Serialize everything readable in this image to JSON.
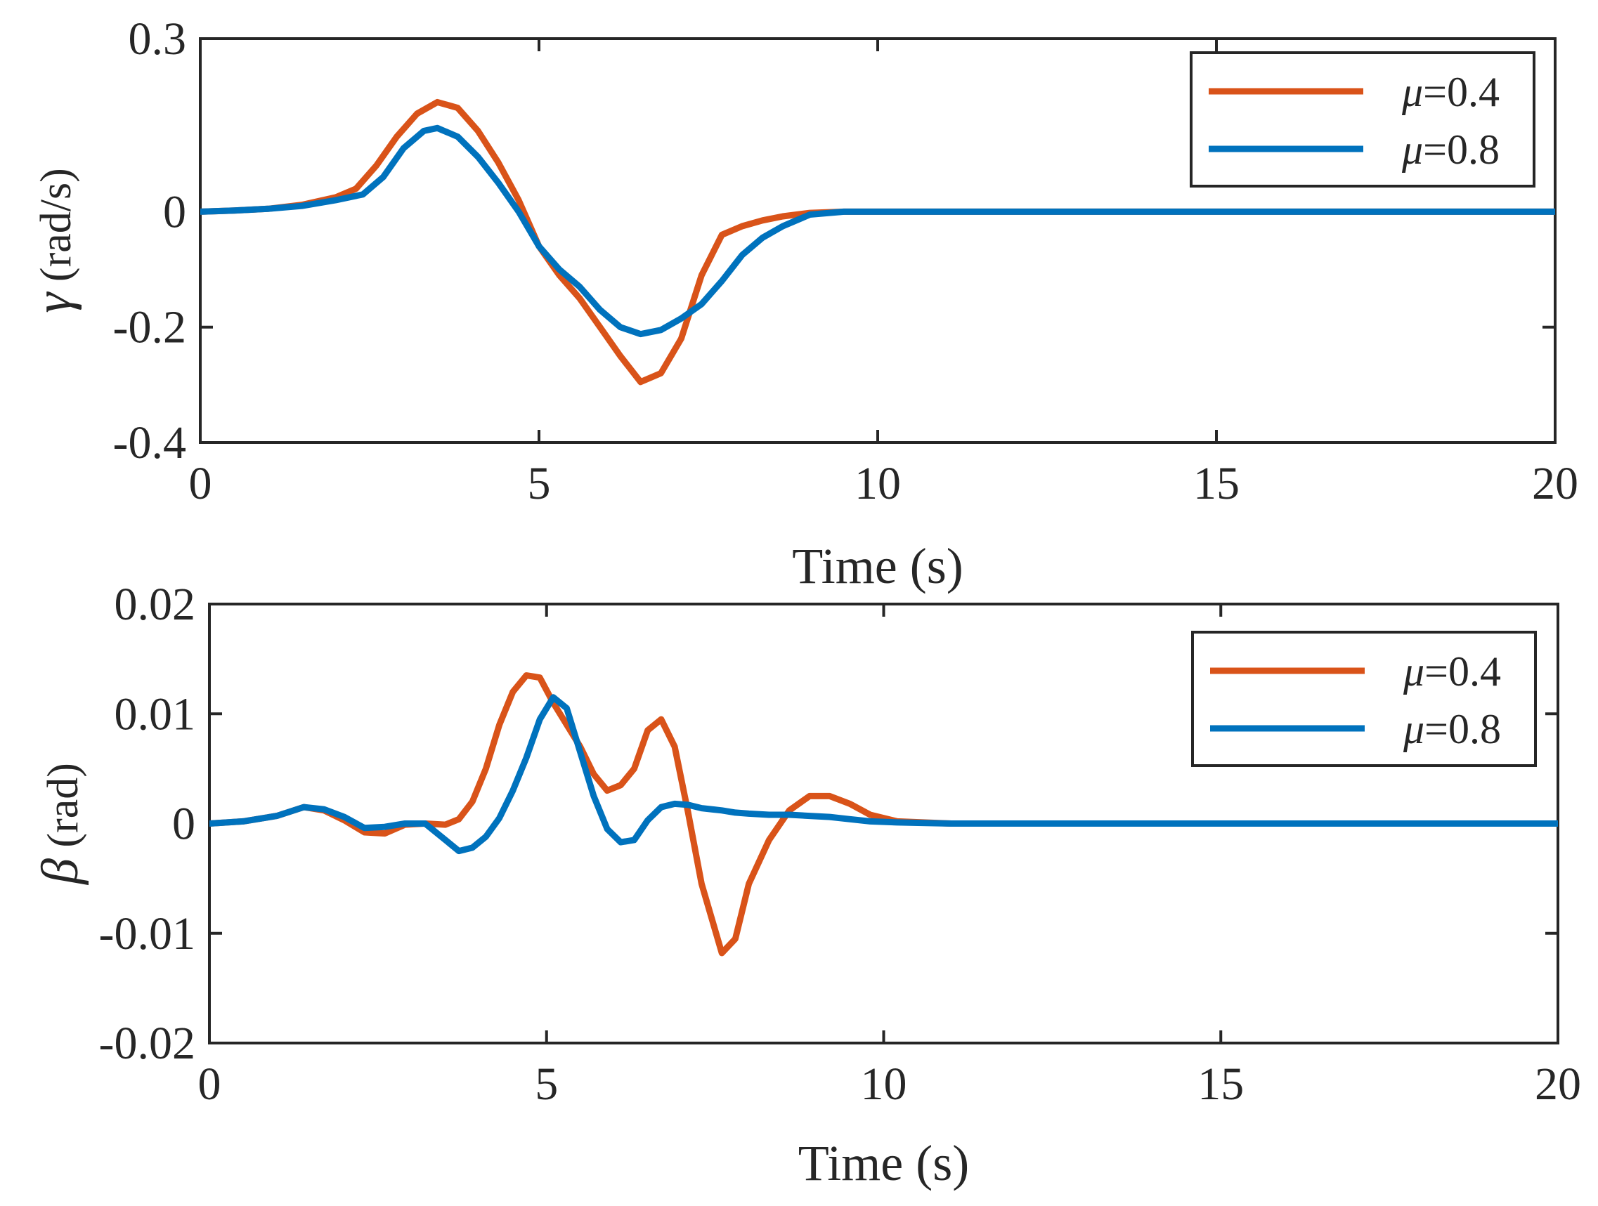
{
  "colors": {
    "mu04": "#D95319",
    "mu08": "#0072BD",
    "axis": "#262626"
  },
  "chart_data": [
    {
      "type": "line",
      "title": "",
      "xlabel": "Time (s)",
      "ylabel_symbol": "γ",
      "ylabel_unit": " (rad/s)",
      "xlim": [
        0,
        20
      ],
      "ylim": [
        -0.4,
        0.3
      ],
      "xticks": [
        0,
        5,
        10,
        15,
        20
      ],
      "xtick_labels": [
        "0",
        "5",
        "10",
        "15",
        "20"
      ],
      "yticks": [
        -0.4,
        -0.2,
        0,
        0.3
      ],
      "ytick_labels": [
        "-0.4",
        "-0.2",
        "0",
        "0.3"
      ],
      "grid": false,
      "legend_position": "top-right",
      "series": [
        {
          "name": "μ=0.4",
          "legend_symbol": "μ",
          "legend_value": "=0.4",
          "color_key": "mu04",
          "x": [
            0,
            0.5,
            1,
            1.5,
            2,
            2.3,
            2.6,
            2.9,
            3.2,
            3.5,
            3.8,
            4.1,
            4.4,
            4.7,
            5,
            5.3,
            5.6,
            5.9,
            6.2,
            6.5,
            6.8,
            7.1,
            7.4,
            7.7,
            8,
            8.3,
            8.6,
            9,
            9.5,
            10,
            12,
            15,
            20
          ],
          "y": [
            0,
            0.002,
            0.005,
            0.012,
            0.025,
            0.04,
            0.08,
            0.13,
            0.17,
            0.19,
            0.18,
            0.14,
            0.085,
            0.02,
            -0.06,
            -0.11,
            -0.15,
            -0.2,
            -0.25,
            -0.295,
            -0.28,
            -0.22,
            -0.11,
            -0.04,
            -0.025,
            -0.015,
            -0.008,
            -0.002,
            0,
            0,
            0,
            0,
            0
          ]
        },
        {
          "name": "μ=0.8",
          "legend_symbol": "μ",
          "legend_value": "=0.8",
          "color_key": "mu08",
          "x": [
            0,
            0.5,
            1,
            1.5,
            2,
            2.4,
            2.7,
            3,
            3.3,
            3.5,
            3.8,
            4.1,
            4.4,
            4.7,
            5,
            5.3,
            5.6,
            5.9,
            6.2,
            6.5,
            6.8,
            7.1,
            7.4,
            7.7,
            8,
            8.3,
            8.6,
            9,
            9.5,
            10,
            12,
            15,
            20
          ],
          "y": [
            0,
            0.002,
            0.005,
            0.01,
            0.02,
            0.03,
            0.06,
            0.11,
            0.14,
            0.145,
            0.13,
            0.095,
            0.05,
            0.0,
            -0.06,
            -0.1,
            -0.13,
            -0.17,
            -0.2,
            -0.212,
            -0.205,
            -0.185,
            -0.16,
            -0.12,
            -0.075,
            -0.045,
            -0.025,
            -0.005,
            0,
            0,
            0,
            0,
            0
          ]
        }
      ]
    },
    {
      "type": "line",
      "title": "",
      "xlabel": "Time (s)",
      "ylabel_symbol": "β",
      "ylabel_unit": " (rad)",
      "xlim": [
        0,
        20
      ],
      "ylim": [
        -0.02,
        0.02
      ],
      "xticks": [
        0,
        5,
        10,
        15,
        20
      ],
      "xtick_labels": [
        "0",
        "5",
        "10",
        "15",
        "20"
      ],
      "yticks": [
        -0.02,
        -0.01,
        0,
        0.01,
        0.02
      ],
      "ytick_labels": [
        "-0.02",
        "-0.01",
        "0",
        "0.01",
        "0.02"
      ],
      "grid": false,
      "legend_position": "top-right",
      "series": [
        {
          "name": "μ=0.4",
          "legend_symbol": "μ",
          "legend_value": "=0.4",
          "color_key": "mu04",
          "x": [
            0,
            0.5,
            1,
            1.4,
            1.7,
            2,
            2.3,
            2.6,
            2.9,
            3.2,
            3.5,
            3.7,
            3.9,
            4.1,
            4.3,
            4.5,
            4.7,
            4.9,
            5.1,
            5.3,
            5.5,
            5.7,
            5.9,
            6.1,
            6.3,
            6.5,
            6.7,
            6.9,
            7.1,
            7.3,
            7.6,
            7.8,
            8,
            8.3,
            8.6,
            8.9,
            9.2,
            9.5,
            9.8,
            10.2,
            11,
            15,
            20
          ],
          "y": [
            0,
            0.0002,
            0.0007,
            0.0015,
            0.0012,
            0.0003,
            -0.0008,
            -0.0009,
            -0.0001,
            0.0,
            -0.0001,
            0.0004,
            0.002,
            0.005,
            0.009,
            0.012,
            0.0135,
            0.0133,
            0.011,
            0.009,
            0.007,
            0.0045,
            0.003,
            0.0035,
            0.005,
            0.0085,
            0.0095,
            0.007,
            0.001,
            -0.0055,
            -0.0118,
            -0.0105,
            -0.0055,
            -0.0015,
            0.0012,
            0.0025,
            0.0025,
            0.0018,
            0.0008,
            0.0002,
            0,
            0,
            0
          ]
        },
        {
          "name": "μ=0.8",
          "legend_symbol": "μ",
          "legend_value": "=0.8",
          "color_key": "mu08",
          "x": [
            0,
            0.5,
            1,
            1.4,
            1.7,
            2,
            2.3,
            2.6,
            2.9,
            3.2,
            3.5,
            3.7,
            3.9,
            4.1,
            4.3,
            4.5,
            4.7,
            4.9,
            5.1,
            5.3,
            5.5,
            5.7,
            5.9,
            6.1,
            6.3,
            6.5,
            6.7,
            6.9,
            7.1,
            7.3,
            7.6,
            7.8,
            8,
            8.3,
            8.6,
            8.9,
            9.2,
            9.5,
            9.8,
            10.2,
            11,
            15,
            20
          ],
          "y": [
            0,
            0.0002,
            0.0007,
            0.0015,
            0.0013,
            0.0006,
            -0.0004,
            -0.0003,
            0.0,
            0.0,
            -0.0015,
            -0.0025,
            -0.0022,
            -0.0012,
            0.0005,
            0.003,
            0.006,
            0.0095,
            0.0115,
            0.0105,
            0.0065,
            0.0025,
            -0.0005,
            -0.0017,
            -0.0015,
            0.0003,
            0.0015,
            0.0018,
            0.0017,
            0.0014,
            0.0012,
            0.001,
            0.0009,
            0.0008,
            0.0008,
            0.0007,
            0.0006,
            0.0004,
            0.0002,
            0.0001,
            0,
            0,
            0
          ]
        }
      ]
    }
  ]
}
